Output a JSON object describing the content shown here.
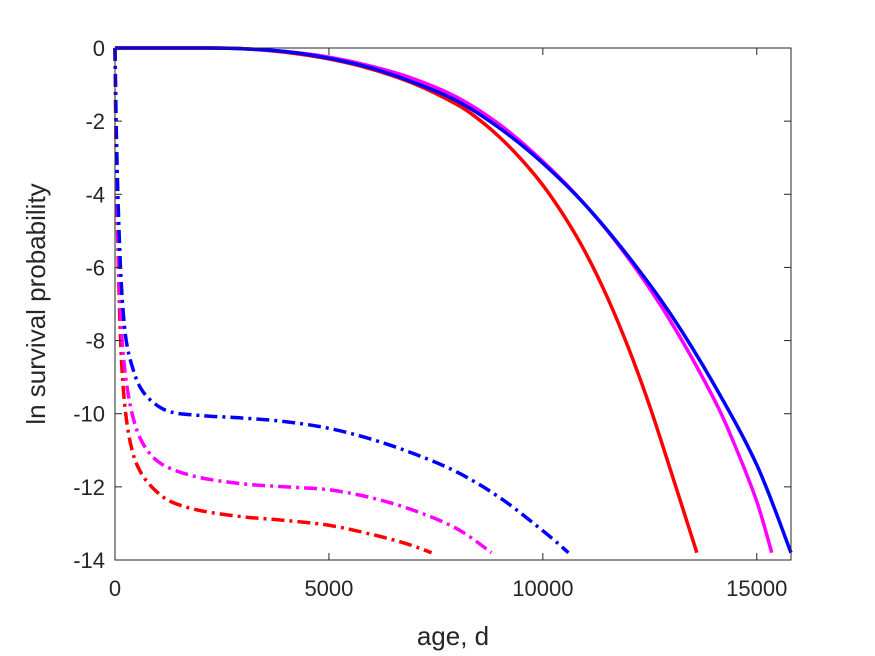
{
  "chart_data": {
    "type": "line",
    "title": "",
    "xlabel": "age, d",
    "ylabel": "ln survival probability",
    "xlim": [
      0,
      15800
    ],
    "ylim": [
      -14,
      0
    ],
    "xticks": [
      0,
      5000,
      10000,
      15000
    ],
    "yticks": [
      0,
      -2,
      -4,
      -6,
      -8,
      -10,
      -12,
      -14
    ],
    "xtick_labels": [
      "0",
      "5000",
      "10000",
      "15000"
    ],
    "ytick_labels": [
      "0",
      "-2",
      "-4",
      "-6",
      "-8",
      "-10",
      "-12",
      "-14"
    ],
    "grid": false,
    "box": true,
    "legend": "none",
    "series": [
      {
        "color": "#ff0000",
        "style": "solid",
        "x": [
          0,
          1000,
          2000,
          3000,
          4000,
          5000,
          6000,
          7000,
          8000,
          8500,
          9000,
          9500,
          10000,
          10500,
          11000,
          11500,
          12000,
          12500,
          13000,
          13300,
          13600
        ],
        "y": [
          0,
          0,
          0,
          -0.02,
          -0.12,
          -0.3,
          -0.58,
          -0.98,
          -1.55,
          -1.95,
          -2.45,
          -3.05,
          -3.75,
          -4.6,
          -5.6,
          -6.8,
          -8.2,
          -9.8,
          -11.6,
          -12.7,
          -13.8
        ]
      },
      {
        "color": "#ff00ff",
        "style": "solid",
        "x": [
          0,
          1000,
          2000,
          3000,
          4000,
          5000,
          6000,
          7000,
          8000,
          9000,
          10000,
          11000,
          12000,
          13000,
          14000,
          14500,
          15000,
          15350
        ],
        "y": [
          0,
          0,
          0,
          -0.02,
          -0.1,
          -0.25,
          -0.5,
          -0.85,
          -1.35,
          -2.1,
          -3.1,
          -4.3,
          -5.75,
          -7.5,
          -9.6,
          -10.9,
          -12.4,
          -13.8
        ]
      },
      {
        "color": "#0000ff",
        "style": "solid",
        "x": [
          0,
          1000,
          2000,
          3000,
          4000,
          5000,
          6000,
          7000,
          8000,
          9000,
          10000,
          11000,
          12000,
          13000,
          14000,
          15000,
          15800
        ],
        "y": [
          0,
          0,
          0,
          -0.02,
          -0.1,
          -0.28,
          -0.55,
          -0.95,
          -1.45,
          -2.2,
          -3.15,
          -4.3,
          -5.7,
          -7.3,
          -9.2,
          -11.4,
          -13.8
        ]
      },
      {
        "color": "#ff0000",
        "style": "dashdot",
        "x": [
          0,
          30,
          80,
          150,
          250,
          400,
          600,
          900,
          1300,
          2000,
          3000,
          4000,
          5000,
          6000,
          6800,
          7400
        ],
        "y": [
          0,
          -3,
          -6,
          -8.5,
          -10,
          -11,
          -11.6,
          -12.05,
          -12.4,
          -12.65,
          -12.82,
          -12.92,
          -13.05,
          -13.3,
          -13.55,
          -13.8
        ]
      },
      {
        "color": "#ff00ff",
        "style": "dashdot",
        "x": [
          0,
          30,
          80,
          150,
          250,
          400,
          600,
          900,
          1300,
          2000,
          3000,
          4000,
          5000,
          6000,
          7000,
          8000,
          8800
        ],
        "y": [
          0,
          -3,
          -5.5,
          -7.7,
          -9,
          -10,
          -10.7,
          -11.2,
          -11.5,
          -11.75,
          -11.92,
          -12.0,
          -12.08,
          -12.3,
          -12.65,
          -13.15,
          -13.8
        ]
      },
      {
        "color": "#0000ff",
        "style": "dashdot",
        "x": [
          0,
          30,
          80,
          150,
          250,
          400,
          600,
          900,
          1300,
          2000,
          3000,
          4000,
          5000,
          6000,
          7000,
          8000,
          9000,
          10000,
          10600
        ],
        "y": [
          0,
          -2.2,
          -4.5,
          -6.5,
          -7.9,
          -8.7,
          -9.3,
          -9.7,
          -9.95,
          -10.05,
          -10.12,
          -10.22,
          -10.4,
          -10.7,
          -11.1,
          -11.6,
          -12.3,
          -13.2,
          -13.8
        ]
      }
    ]
  }
}
